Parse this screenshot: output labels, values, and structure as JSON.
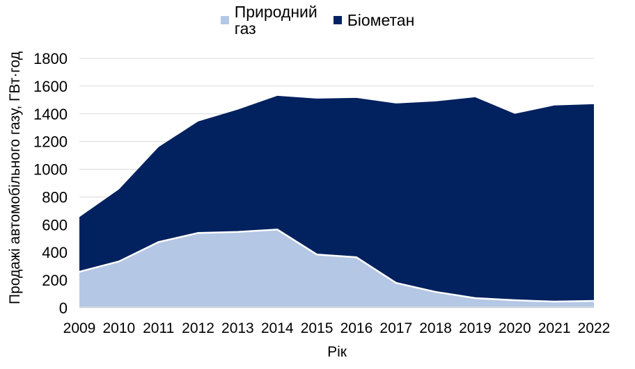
{
  "chart_data": {
    "type": "area",
    "stacked": true,
    "title": "",
    "xlabel": "Рік",
    "ylabel": "Продажі автомобільного газу, ГВт·год",
    "x": [
      2009,
      2010,
      2011,
      2012,
      2013,
      2014,
      2015,
      2016,
      2017,
      2018,
      2019,
      2020,
      2021,
      2022
    ],
    "series": [
      {
        "name": "Природний газ",
        "color": "#b4c7e4",
        "values": [
          260,
          335,
          475,
          540,
          548,
          565,
          385,
          365,
          180,
          115,
          70,
          55,
          45,
          50
        ]
      },
      {
        "name": "Біометан",
        "color": "#02215f",
        "values": [
          395,
          520,
          685,
          805,
          882,
          965,
          1125,
          1150,
          1295,
          1375,
          1450,
          1345,
          1415,
          1420
        ]
      }
    ],
    "stacked_totals": [
      655,
      855,
      1160,
      1345,
      1430,
      1530,
      1510,
      1515,
      1475,
      1490,
      1520,
      1400,
      1460,
      1470
    ],
    "ylim": [
      0,
      1800
    ],
    "yticks": [
      0,
      200,
      400,
      600,
      800,
      1000,
      1200,
      1400,
      1600,
      1800
    ],
    "grid": "horizontal",
    "legend_position": "top",
    "colors": {
      "gridline": "#d9d9d9",
      "axis_line": "#c9c9c9",
      "separator": "#ffffff",
      "text": "#000000",
      "background": "#ffffff"
    }
  },
  "legend": {
    "items": [
      {
        "label": "Природний газ",
        "color": "#b4c7e4"
      },
      {
        "label": "Біометан",
        "color": "#02215f"
      }
    ]
  }
}
